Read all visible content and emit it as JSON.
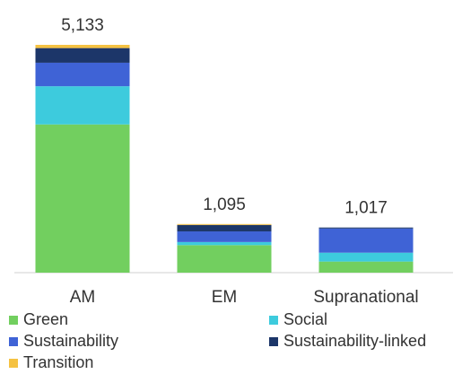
{
  "chart_data": {
    "type": "bar",
    "stacked": true,
    "categories": [
      "AM",
      "EM",
      "Supranational"
    ],
    "totals": [
      "5,133",
      "1,095",
      "1,017"
    ],
    "series": [
      {
        "name": "Green",
        "color": "#72cf5f",
        "values": [
          3340,
          620,
          250
        ]
      },
      {
        "name": "Social",
        "color": "#3dcbdd",
        "values": [
          860,
          70,
          200
        ]
      },
      {
        "name": "Sustainability",
        "color": "#3f63d6",
        "values": [
          530,
          240,
          545
        ]
      },
      {
        "name": "Sustainability-linked",
        "color": "#1c3669",
        "values": [
          330,
          145,
          22
        ]
      },
      {
        "name": "Transition",
        "color": "#f5c242",
        "values": [
          73,
          20,
          0
        ]
      }
    ],
    "ylim": [
      0,
      5133
    ],
    "grid": false,
    "legend_position": "bottom"
  }
}
